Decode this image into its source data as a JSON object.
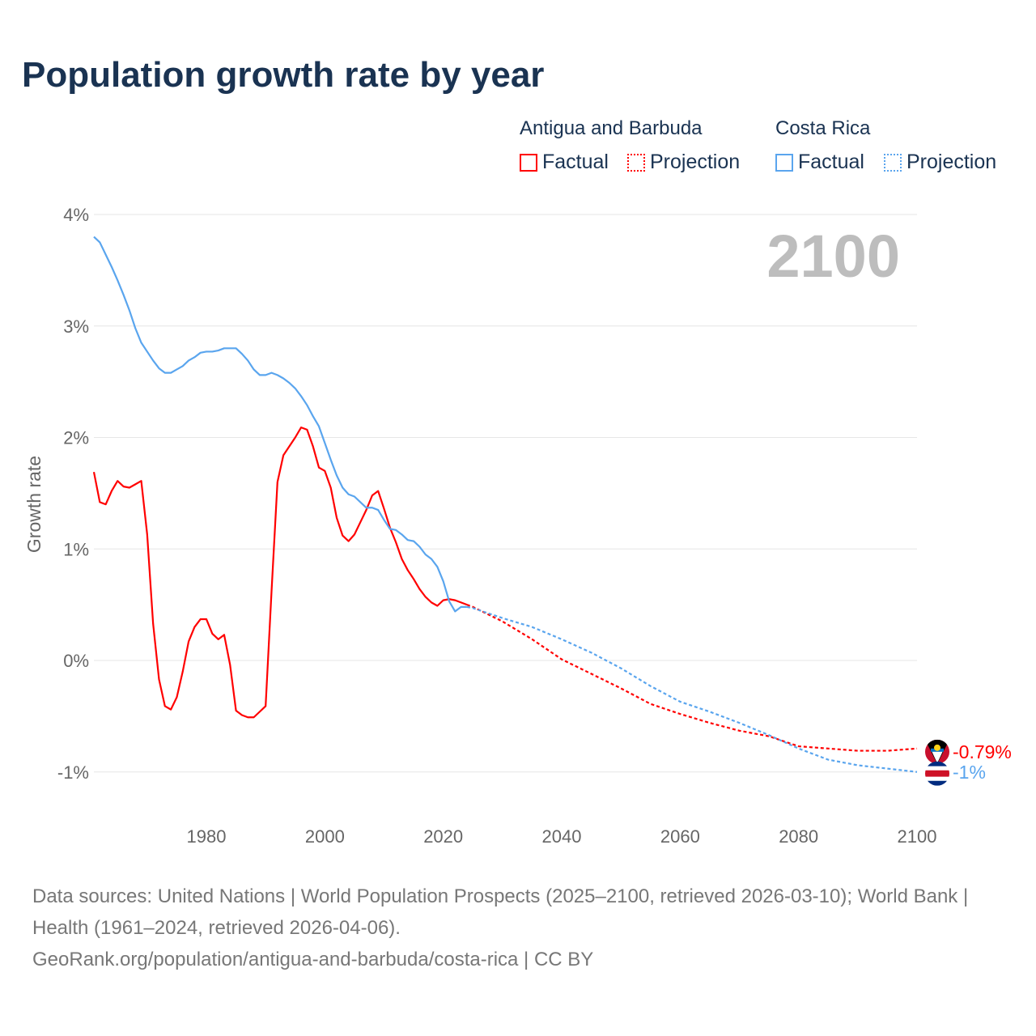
{
  "title": "Population growth rate by year",
  "legend": {
    "groups": [
      {
        "country": "Antigua and Barbuda",
        "factual": "Factual",
        "projection": "Projection",
        "color": "#ff0000"
      },
      {
        "country": "Costa Rica",
        "factual": "Factual",
        "projection": "Projection",
        "color": "#5aa5ee"
      }
    ]
  },
  "year_label": "2100",
  "footer": {
    "sources": "Data sources: United Nations | World Population Prospects (2025–2100, retrieved 2026-03-10); World Bank | Health (1961–2024, retrieved 2026-04-06).",
    "link": "GeoRank.org/population/antigua-and-barbuda/costa-rica | CC BY"
  },
  "chart_data": {
    "type": "line",
    "title": "Population growth rate by year",
    "xlabel": "",
    "ylabel": "Growth rate",
    "xlim": [
      1961,
      2100
    ],
    "ylim": [
      -1.4,
      4
    ],
    "x_ticks": [
      1980,
      2000,
      2020,
      2040,
      2060,
      2080,
      2100
    ],
    "y_ticks": [
      {
        "v": 4,
        "label": "4%"
      },
      {
        "v": 3,
        "label": "3%"
      },
      {
        "v": 2,
        "label": "2%"
      },
      {
        "v": 1,
        "label": "1%"
      },
      {
        "v": 0,
        "label": "0%"
      },
      {
        "v": -1,
        "label": "-1%"
      }
    ],
    "grid": true,
    "series": [
      {
        "name": "Antigua and Barbuda",
        "color": "#ff0000",
        "end_label": "-0.79%",
        "factual": {
          "start_year": 1961,
          "values": [
            1.69,
            1.42,
            1.4,
            1.52,
            1.61,
            1.56,
            1.55,
            1.58,
            1.61,
            1.13,
            0.33,
            -0.17,
            -0.41,
            -0.44,
            -0.33,
            -0.1,
            0.17,
            0.3,
            0.37,
            0.37,
            0.24,
            0.19,
            0.23,
            -0.04,
            -0.45,
            -0.49,
            -0.51,
            -0.51,
            -0.46,
            -0.41,
            0.62,
            1.6,
            1.84,
            1.92,
            2.0,
            2.09,
            2.07,
            1.92,
            1.73,
            1.7,
            1.55,
            1.28,
            1.12,
            1.07,
            1.13,
            1.24,
            1.35,
            1.48,
            1.52,
            1.36,
            1.19,
            1.06,
            0.91,
            0.81,
            0.73,
            0.64,
            0.57,
            0.52,
            0.49,
            0.54,
            0.55,
            0.54,
            0.52,
            0.5
          ]
        },
        "projection": {
          "x": [
            2024,
            2025,
            2030,
            2035,
            2040,
            2045,
            2050,
            2055,
            2060,
            2065,
            2070,
            2075,
            2080,
            2085,
            2090,
            2095,
            2100
          ],
          "values": [
            0.5,
            0.48,
            0.35,
            0.19,
            0.01,
            -0.12,
            -0.25,
            -0.39,
            -0.48,
            -0.56,
            -0.63,
            -0.68,
            -0.77,
            -0.79,
            -0.81,
            -0.81,
            -0.79
          ]
        }
      },
      {
        "name": "Costa Rica",
        "color": "#5aa5ee",
        "end_label": "-1%",
        "factual": {
          "start_year": 1961,
          "values": [
            3.8,
            3.75,
            3.64,
            3.53,
            3.41,
            3.28,
            3.14,
            2.98,
            2.85,
            2.77,
            2.69,
            2.62,
            2.58,
            2.58,
            2.61,
            2.64,
            2.69,
            2.72,
            2.76,
            2.77,
            2.77,
            2.78,
            2.8,
            2.8,
            2.8,
            2.75,
            2.69,
            2.61,
            2.56,
            2.56,
            2.58,
            2.56,
            2.53,
            2.49,
            2.44,
            2.37,
            2.29,
            2.19,
            2.1,
            1.95,
            1.8,
            1.66,
            1.55,
            1.49,
            1.47,
            1.42,
            1.37,
            1.37,
            1.35,
            1.26,
            1.18,
            1.17,
            1.13,
            1.08,
            1.07,
            1.02,
            0.95,
            0.91,
            0.84,
            0.71,
            0.53,
            0.44,
            0.48,
            0.48
          ]
        },
        "projection": {
          "x": [
            2024,
            2025,
            2030,
            2035,
            2040,
            2045,
            2050,
            2055,
            2060,
            2065,
            2070,
            2075,
            2080,
            2085,
            2090,
            2095,
            2100
          ],
          "values": [
            0.48,
            0.47,
            0.38,
            0.3,
            0.19,
            0.07,
            -0.07,
            -0.23,
            -0.37,
            -0.46,
            -0.56,
            -0.67,
            -0.79,
            -0.89,
            -0.94,
            -0.97,
            -1.0
          ]
        }
      }
    ]
  }
}
